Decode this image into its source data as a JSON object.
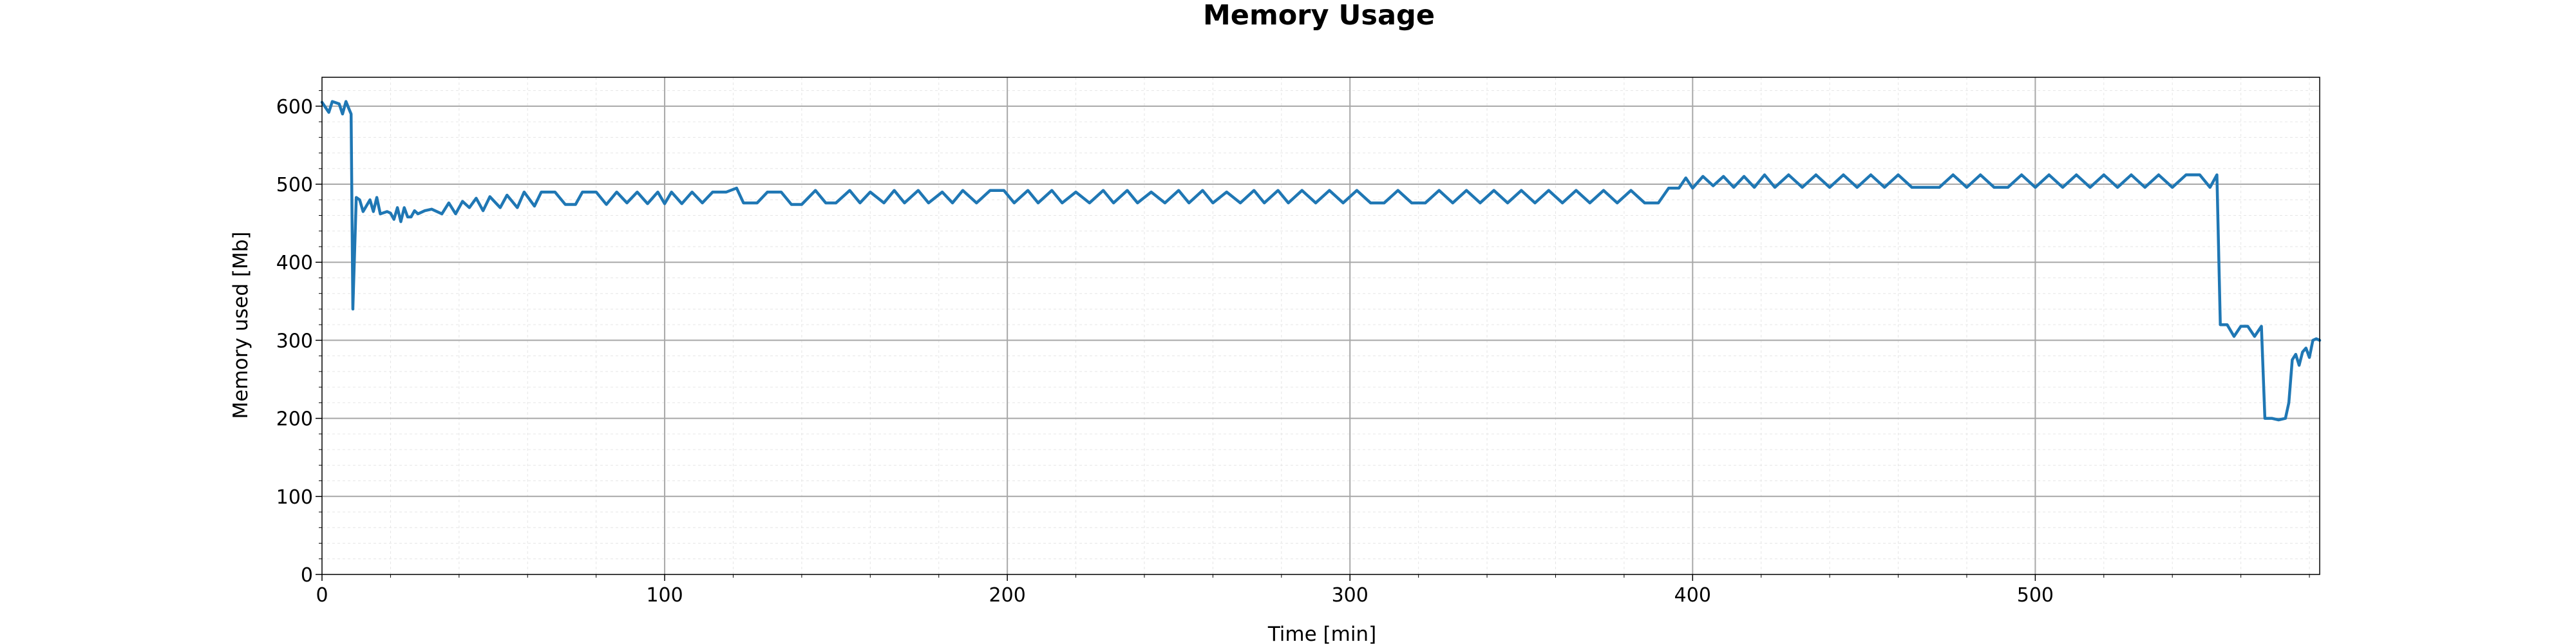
{
  "chart_data": {
    "type": "line",
    "title": "Memory Usage",
    "xlabel": "Time [min]",
    "ylabel": "Memory used [Mb]",
    "xlim": [
      0,
      583
    ],
    "ylim": [
      0,
      637
    ],
    "xticks": [
      0,
      100,
      200,
      300,
      400,
      500
    ],
    "yticks": [
      0,
      100,
      200,
      300,
      400,
      500,
      600
    ],
    "grid": true,
    "minor_grid": true,
    "colors": {
      "line": "#1f77b4",
      "major_grid": "#a8a8a8",
      "minor_grid": "#e6e6e6"
    },
    "series": [
      {
        "values": [
          [
            0,
            605
          ],
          [
            2,
            592
          ],
          [
            3,
            606
          ],
          [
            5,
            603
          ],
          [
            6,
            590
          ],
          [
            7,
            606
          ],
          [
            8,
            595
          ],
          [
            8.5,
            590
          ],
          [
            9,
            340
          ],
          [
            10,
            483
          ],
          [
            11,
            480
          ],
          [
            12,
            465
          ],
          [
            14,
            480
          ],
          [
            15,
            465
          ],
          [
            16,
            483
          ],
          [
            17,
            462
          ],
          [
            19,
            465
          ],
          [
            20,
            463
          ],
          [
            21,
            455
          ],
          [
            22,
            470
          ],
          [
            23,
            452
          ],
          [
            24,
            470
          ],
          [
            25,
            458
          ],
          [
            26,
            458
          ],
          [
            27,
            466
          ],
          [
            28,
            462
          ],
          [
            30,
            466
          ],
          [
            32,
            468
          ],
          [
            35,
            462
          ],
          [
            37,
            476
          ],
          [
            39,
            462
          ],
          [
            41,
            478
          ],
          [
            43,
            470
          ],
          [
            45,
            482
          ],
          [
            47,
            466
          ],
          [
            49,
            484
          ],
          [
            52,
            470
          ],
          [
            54,
            486
          ],
          [
            57,
            470
          ],
          [
            59,
            490
          ],
          [
            62,
            472
          ],
          [
            64,
            490
          ],
          [
            68,
            490
          ],
          [
            71,
            474
          ],
          [
            74,
            474
          ],
          [
            76,
            490
          ],
          [
            80,
            490
          ],
          [
            83,
            474
          ],
          [
            86,
            490
          ],
          [
            89,
            476
          ],
          [
            92,
            490
          ],
          [
            95,
            475
          ],
          [
            98,
            490
          ],
          [
            100,
            475
          ],
          [
            102,
            490
          ],
          [
            105,
            475
          ],
          [
            108,
            490
          ],
          [
            111,
            476
          ],
          [
            114,
            490
          ],
          [
            118,
            490
          ],
          [
            121,
            495
          ],
          [
            123,
            476
          ],
          [
            127,
            476
          ],
          [
            130,
            490
          ],
          [
            134,
            490
          ],
          [
            137,
            474
          ],
          [
            140,
            474
          ],
          [
            144,
            492
          ],
          [
            147,
            476
          ],
          [
            150,
            476
          ],
          [
            154,
            492
          ],
          [
            157,
            476
          ],
          [
            160,
            490
          ],
          [
            164,
            476
          ],
          [
            167,
            492
          ],
          [
            170,
            476
          ],
          [
            174,
            492
          ],
          [
            177,
            476
          ],
          [
            181,
            490
          ],
          [
            184,
            476
          ],
          [
            187,
            492
          ],
          [
            191,
            476
          ],
          [
            195,
            492
          ],
          [
            199,
            492
          ],
          [
            202,
            476
          ],
          [
            206,
            492
          ],
          [
            209,
            476
          ],
          [
            213,
            492
          ],
          [
            216,
            476
          ],
          [
            220,
            490
          ],
          [
            224,
            476
          ],
          [
            228,
            492
          ],
          [
            231,
            476
          ],
          [
            235,
            492
          ],
          [
            238,
            476
          ],
          [
            242,
            490
          ],
          [
            246,
            476
          ],
          [
            250,
            492
          ],
          [
            253,
            476
          ],
          [
            257,
            492
          ],
          [
            260,
            476
          ],
          [
            264,
            490
          ],
          [
            268,
            476
          ],
          [
            272,
            492
          ],
          [
            275,
            476
          ],
          [
            279,
            492
          ],
          [
            282,
            476
          ],
          [
            286,
            492
          ],
          [
            290,
            476
          ],
          [
            294,
            492
          ],
          [
            298,
            476
          ],
          [
            302,
            492
          ],
          [
            306,
            476
          ],
          [
            310,
            476
          ],
          [
            314,
            492
          ],
          [
            318,
            476
          ],
          [
            322,
            476
          ],
          [
            326,
            492
          ],
          [
            330,
            476
          ],
          [
            334,
            492
          ],
          [
            338,
            476
          ],
          [
            342,
            492
          ],
          [
            346,
            476
          ],
          [
            350,
            492
          ],
          [
            354,
            476
          ],
          [
            358,
            492
          ],
          [
            362,
            476
          ],
          [
            366,
            492
          ],
          [
            370,
            476
          ],
          [
            374,
            492
          ],
          [
            378,
            476
          ],
          [
            382,
            492
          ],
          [
            386,
            476
          ],
          [
            390,
            476
          ],
          [
            393,
            495
          ],
          [
            396,
            495
          ],
          [
            398,
            508
          ],
          [
            400,
            495
          ],
          [
            403,
            510
          ],
          [
            406,
            498
          ],
          [
            409,
            510
          ],
          [
            412,
            496
          ],
          [
            415,
            510
          ],
          [
            418,
            496
          ],
          [
            421,
            512
          ],
          [
            424,
            496
          ],
          [
            428,
            512
          ],
          [
            432,
            496
          ],
          [
            436,
            512
          ],
          [
            440,
            496
          ],
          [
            444,
            512
          ],
          [
            448,
            496
          ],
          [
            452,
            512
          ],
          [
            456,
            496
          ],
          [
            460,
            512
          ],
          [
            464,
            496
          ],
          [
            468,
            496
          ],
          [
            472,
            496
          ],
          [
            476,
            512
          ],
          [
            480,
            496
          ],
          [
            484,
            512
          ],
          [
            488,
            496
          ],
          [
            492,
            496
          ],
          [
            496,
            512
          ],
          [
            500,
            496
          ],
          [
            504,
            512
          ],
          [
            508,
            496
          ],
          [
            512,
            512
          ],
          [
            516,
            496
          ],
          [
            520,
            512
          ],
          [
            524,
            496
          ],
          [
            528,
            512
          ],
          [
            532,
            496
          ],
          [
            536,
            512
          ],
          [
            540,
            496
          ],
          [
            544,
            512
          ],
          [
            548,
            512
          ],
          [
            551,
            496
          ],
          [
            553,
            512
          ],
          [
            554,
            320
          ],
          [
            556,
            320
          ],
          [
            558,
            305
          ],
          [
            560,
            318
          ],
          [
            562,
            318
          ],
          [
            564,
            305
          ],
          [
            566,
            318
          ],
          [
            567,
            200
          ],
          [
            569,
            200
          ],
          [
            571,
            198
          ],
          [
            573,
            200
          ],
          [
            574,
            220
          ],
          [
            575,
            275
          ],
          [
            576,
            282
          ],
          [
            577,
            268
          ],
          [
            578,
            285
          ],
          [
            579,
            290
          ],
          [
            580,
            278
          ],
          [
            581,
            300
          ],
          [
            582,
            302
          ],
          [
            583,
            300
          ]
        ]
      }
    ]
  }
}
